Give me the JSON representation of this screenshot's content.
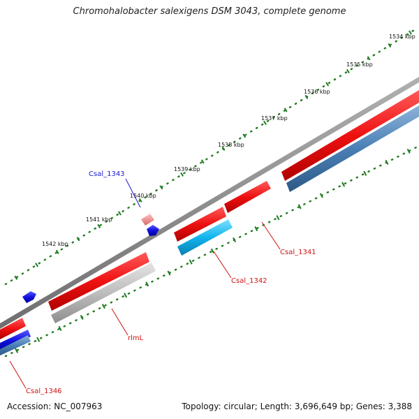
{
  "map": {
    "title": "Chromohalobacter salexigens DSM 3043, complete genome",
    "accession": "Accession: NC_007963",
    "summary": "Topology: circular; Length: 3,696,649 bp; Genes: 3,388",
    "ruler_ticks": [
      "1534 kbp",
      "1535 kbp",
      "1536 kbp",
      "1537 kbp",
      "1538 kbp",
      "1539 kbp",
      "1540 kbp",
      "1541 kbp",
      "1542 kbp"
    ],
    "gene_labels": [
      {
        "name": "Csal_1343",
        "color": "#1a1acc"
      },
      {
        "name": "Csal_1341",
        "color": "#cc1111"
      },
      {
        "name": "Csal_1342",
        "color": "#cc1111"
      },
      {
        "name": "rlmL",
        "color": "#cc1111"
      },
      {
        "name": "Csal_1346",
        "color": "#cc1111"
      }
    ],
    "colors": {
      "forward_cds": "#ee1111",
      "reverse_cds": "#4a7fb5",
      "cyan_cds": "#11b4ee",
      "grey_cds": "#bdbdbd",
      "blue_cds": "#1111dd",
      "pink_feature": "#f08f8f",
      "tick_green": "#1e7a1e",
      "backbone": "#8a8a8a"
    }
  }
}
